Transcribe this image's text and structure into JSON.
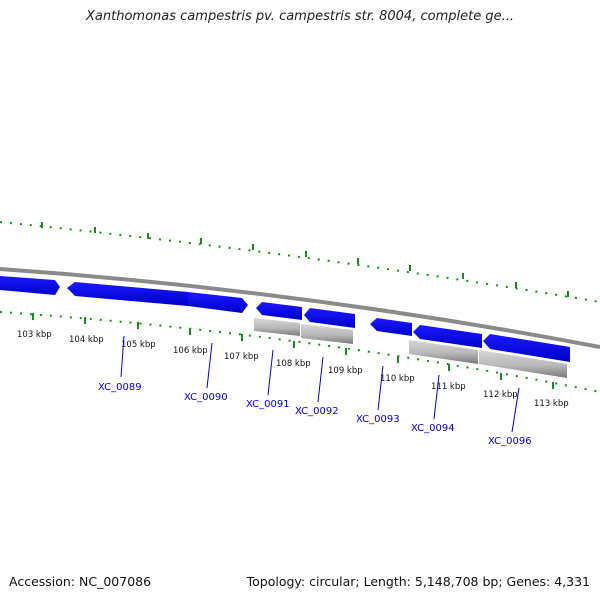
{
  "title": "Xanthomonas campestris pv. campestris str. 8004, complete ge...",
  "accession": "Accession: NC_007086",
  "summary": "Topology: circular; Length: 5,148,708 bp; Genes: 4,331",
  "colors": {
    "backbone": "#888888",
    "cds": "#0000ee",
    "rna": "#c8c8c8",
    "ticks": "#1a8a1a",
    "gene_label": "#0000cc"
  },
  "scale_labels": [
    "103 kbp",
    "104 kbp",
    "105 kbp",
    "106 kbp",
    "107 kbp",
    "108 kbp",
    "109 kbp",
    "110 kbp",
    "111 kbp",
    "112 kbp",
    "113 kbp"
  ],
  "gene_labels": [
    "XC_0089",
    "XC_0090",
    "XC_0091",
    "XC_0092",
    "XC_0093",
    "XC_0094",
    "XC_0096"
  ]
}
